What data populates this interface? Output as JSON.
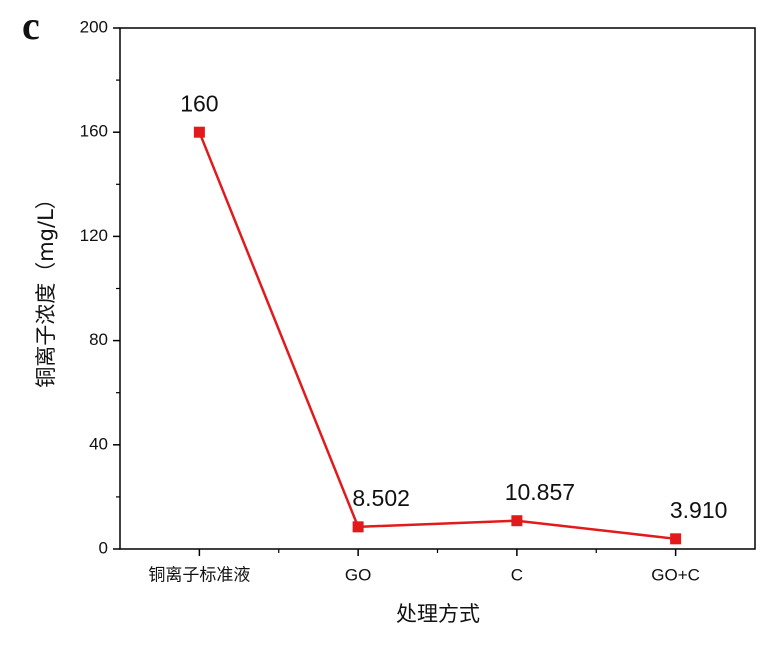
{
  "chart_data": {
    "type": "line",
    "panel_label": "c",
    "x_label": "处理方式",
    "y_label": "铜离子浓度（mg/L）",
    "categories": [
      "铜离子标准液",
      "GO",
      "C",
      "GO+C"
    ],
    "series": [
      {
        "name": "铜离子浓度",
        "color": "#e31a1c",
        "values": [
          160,
          8.502,
          10.857,
          3.91
        ],
        "value_labels": [
          "160",
          "8.502",
          "10.857",
          "3.910"
        ]
      }
    ],
    "ylim": [
      0,
      200
    ],
    "yticks": [
      0,
      40,
      80,
      120,
      160,
      200
    ],
    "grid": false
  }
}
